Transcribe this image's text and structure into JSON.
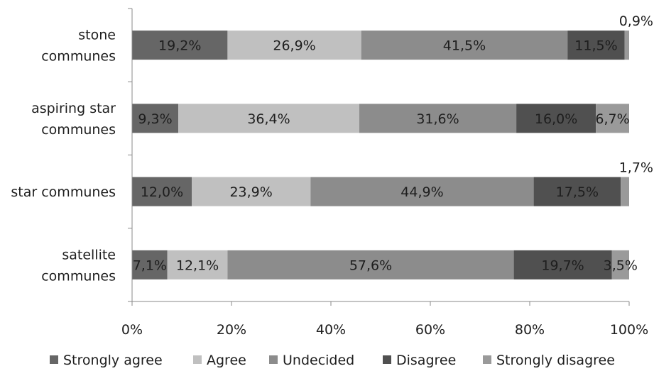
{
  "chart_data": {
    "type": "bar",
    "orientation": "horizontal",
    "stacked": "100%",
    "title": "",
    "xlabel": "",
    "ylabel": "",
    "xlim": [
      0,
      100
    ],
    "x_ticks": [
      "0%",
      "20%",
      "40%",
      "60%",
      "80%",
      "100%"
    ],
    "grid": false,
    "legend_position": "bottom",
    "categories": [
      [
        "stone",
        "communes"
      ],
      [
        "aspiring star",
        "communes"
      ],
      [
        "star communes"
      ],
      [
        "satellite",
        "communes"
      ]
    ],
    "series": [
      {
        "name": "Strongly agree",
        "color": "#666666",
        "values": [
          19.2,
          9.3,
          12.0,
          7.1
        ],
        "labels": [
          "19,2%",
          "9,3%",
          "12,0%",
          "7,1%"
        ]
      },
      {
        "name": "Agree",
        "color": "#c0c0c0",
        "values": [
          26.9,
          36.4,
          23.9,
          12.1
        ],
        "labels": [
          "26,9%",
          "36,4%",
          "23,9%",
          "12,1%"
        ]
      },
      {
        "name": "Undecided",
        "color": "#8c8c8c",
        "values": [
          41.5,
          31.6,
          44.9,
          57.6
        ],
        "labels": [
          "41,5%",
          "31,6%",
          "44,9%",
          "57,6%"
        ]
      },
      {
        "name": "Disagree",
        "color": "#505050",
        "values": [
          11.5,
          16.0,
          17.5,
          19.7
        ],
        "labels": [
          "11,5%",
          "16,0%",
          "17,5%",
          "19,7%"
        ]
      },
      {
        "name": "Strongly disagree",
        "color": "#9a9a9a",
        "values": [
          0.9,
          6.7,
          1.7,
          3.5
        ],
        "labels": [
          "0,9%",
          "6,7%",
          "1,7%",
          "3,5%"
        ]
      }
    ]
  }
}
